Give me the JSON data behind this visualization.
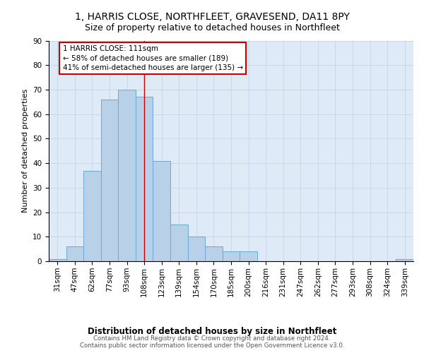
{
  "title": "1, HARRIS CLOSE, NORTHFLEET, GRAVESEND, DA11 8PY",
  "subtitle": "Size of property relative to detached houses in Northfleet",
  "xlabel": "Distribution of detached houses by size in Northfleet",
  "ylabel": "Number of detached properties",
  "bin_labels": [
    "31sqm",
    "47sqm",
    "62sqm",
    "77sqm",
    "93sqm",
    "108sqm",
    "123sqm",
    "139sqm",
    "154sqm",
    "170sqm",
    "185sqm",
    "200sqm",
    "216sqm",
    "231sqm",
    "247sqm",
    "262sqm",
    "277sqm",
    "293sqm",
    "308sqm",
    "324sqm",
    "339sqm"
  ],
  "bar_values": [
    1,
    6,
    37,
    66,
    70,
    67,
    41,
    15,
    10,
    6,
    4,
    4,
    0,
    0,
    0,
    0,
    0,
    0,
    0,
    0,
    1
  ],
  "bar_color": "#b8d0e8",
  "bar_edge_color": "#6aaad4",
  "vline_x": 5.0,
  "vline_color": "#cc0000",
  "annotation_text": "1 HARRIS CLOSE: 111sqm\n← 58% of detached houses are smaller (189)\n41% of semi-detached houses are larger (135) →",
  "annotation_box_color": "#ffffff",
  "annotation_box_edge_color": "#cc0000",
  "ylim": [
    0,
    90
  ],
  "yticks": [
    0,
    10,
    20,
    30,
    40,
    50,
    60,
    70,
    80,
    90
  ],
  "grid_color": "#c8d8e8",
  "background_color": "#deeaf6",
  "footer_text": "Contains HM Land Registry data © Crown copyright and database right 2024.\nContains public sector information licensed under the Open Government Licence v3.0.",
  "title_fontsize": 10,
  "subtitle_fontsize": 9,
  "xlabel_fontsize": 8.5,
  "ylabel_fontsize": 8,
  "tick_fontsize": 7.5,
  "footer_fontsize": 6.2,
  "annot_fontsize": 7.5
}
